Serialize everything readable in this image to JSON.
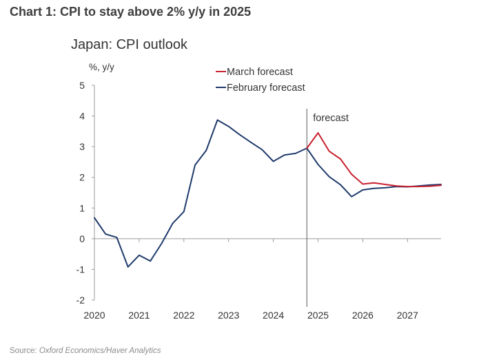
{
  "page": {
    "header": "Chart 1: CPI to stay above 2% y/y in 2025",
    "source_label": "Source:",
    "source_text": "Oxford Economics/Haver Analytics"
  },
  "chart_data": {
    "type": "line",
    "title": "Japan: CPI outlook",
    "ylabel": "%, y/y",
    "xlabel": "",
    "ylim": [
      -2,
      5
    ],
    "xlim": [
      2020.0,
      2027.75
    ],
    "y_ticks": [
      "-2",
      "-1",
      "0",
      "1",
      "2",
      "3",
      "4",
      "5"
    ],
    "x_ticks": [
      "2020",
      "2021",
      "2022",
      "2023",
      "2024",
      "2025",
      "2026",
      "2027"
    ],
    "grid": false,
    "legend_position": "top-center",
    "forecast_divider": {
      "x": 2024.75,
      "label": "forecast"
    },
    "series": [
      {
        "name": "March forecast",
        "color": "#c8202f",
        "x": [
          2024.75,
          2025.0,
          2025.25,
          2025.5,
          2025.75,
          2026.0,
          2026.25,
          2026.5,
          2026.75,
          2027.0,
          2027.25,
          2027.5,
          2027.75
        ],
        "values": [
          2.95,
          3.45,
          2.85,
          2.6,
          2.1,
          1.78,
          1.82,
          1.77,
          1.72,
          1.7,
          1.7,
          1.71,
          1.74
        ]
      },
      {
        "name": "February forecast",
        "color": "#1f3a6b",
        "x": [
          2020.0,
          2020.25,
          2020.5,
          2020.75,
          2021.0,
          2021.25,
          2021.5,
          2021.75,
          2022.0,
          2022.25,
          2022.5,
          2022.75,
          2023.0,
          2023.25,
          2023.5,
          2023.75,
          2024.0,
          2024.25,
          2024.5,
          2024.75,
          2025.0,
          2025.25,
          2025.5,
          2025.75,
          2026.0,
          2026.25,
          2026.5,
          2026.75,
          2027.0,
          2027.25,
          2027.5,
          2027.75
        ],
        "values": [
          0.68,
          0.15,
          0.04,
          -0.92,
          -0.54,
          -0.73,
          -0.16,
          0.5,
          0.88,
          2.4,
          2.88,
          3.87,
          3.66,
          3.39,
          3.14,
          2.9,
          2.52,
          2.73,
          2.78,
          2.95,
          2.42,
          2.02,
          1.76,
          1.37,
          1.59,
          1.64,
          1.66,
          1.7,
          1.69,
          1.72,
          1.75,
          1.77
        ]
      }
    ]
  }
}
